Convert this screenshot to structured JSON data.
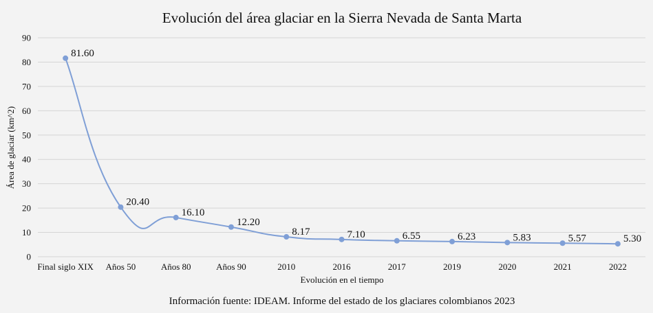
{
  "chart_data": {
    "type": "line",
    "title": "Evolución del área glaciar en la Sierra Nevada de Santa Marta",
    "xlabel": "Evolución en el tiempo",
    "ylabel": "Área de glaciar (km^2)",
    "categories": [
      "Final siglo XIX",
      "Años 50",
      "Años 80",
      "Años 90",
      "2010",
      "2016",
      "2017",
      "2019",
      "2020",
      "2021",
      "2022"
    ],
    "series": [
      {
        "values": [
          81.6,
          20.4,
          16.1,
          12.2,
          8.17,
          7.1,
          6.55,
          6.23,
          5.83,
          5.57,
          5.3
        ],
        "labels": [
          "81.60",
          "20.40",
          "16.10",
          "12.20",
          "8.17",
          "7.10",
          "6.55",
          "6.23",
          "5.83",
          "5.57",
          "5.30"
        ]
      }
    ],
    "ylim": [
      0,
      90
    ],
    "yticks": [
      "0",
      "10",
      "20",
      "30",
      "40",
      "50",
      "60",
      "70",
      "80",
      "90"
    ],
    "grid": "horizontal",
    "line_color": "#7f9fd6",
    "grid_color": "#d4d4d4",
    "source": "Información fuente: IDEAM. Informe del estado de los glaciares colombianos 2023"
  }
}
